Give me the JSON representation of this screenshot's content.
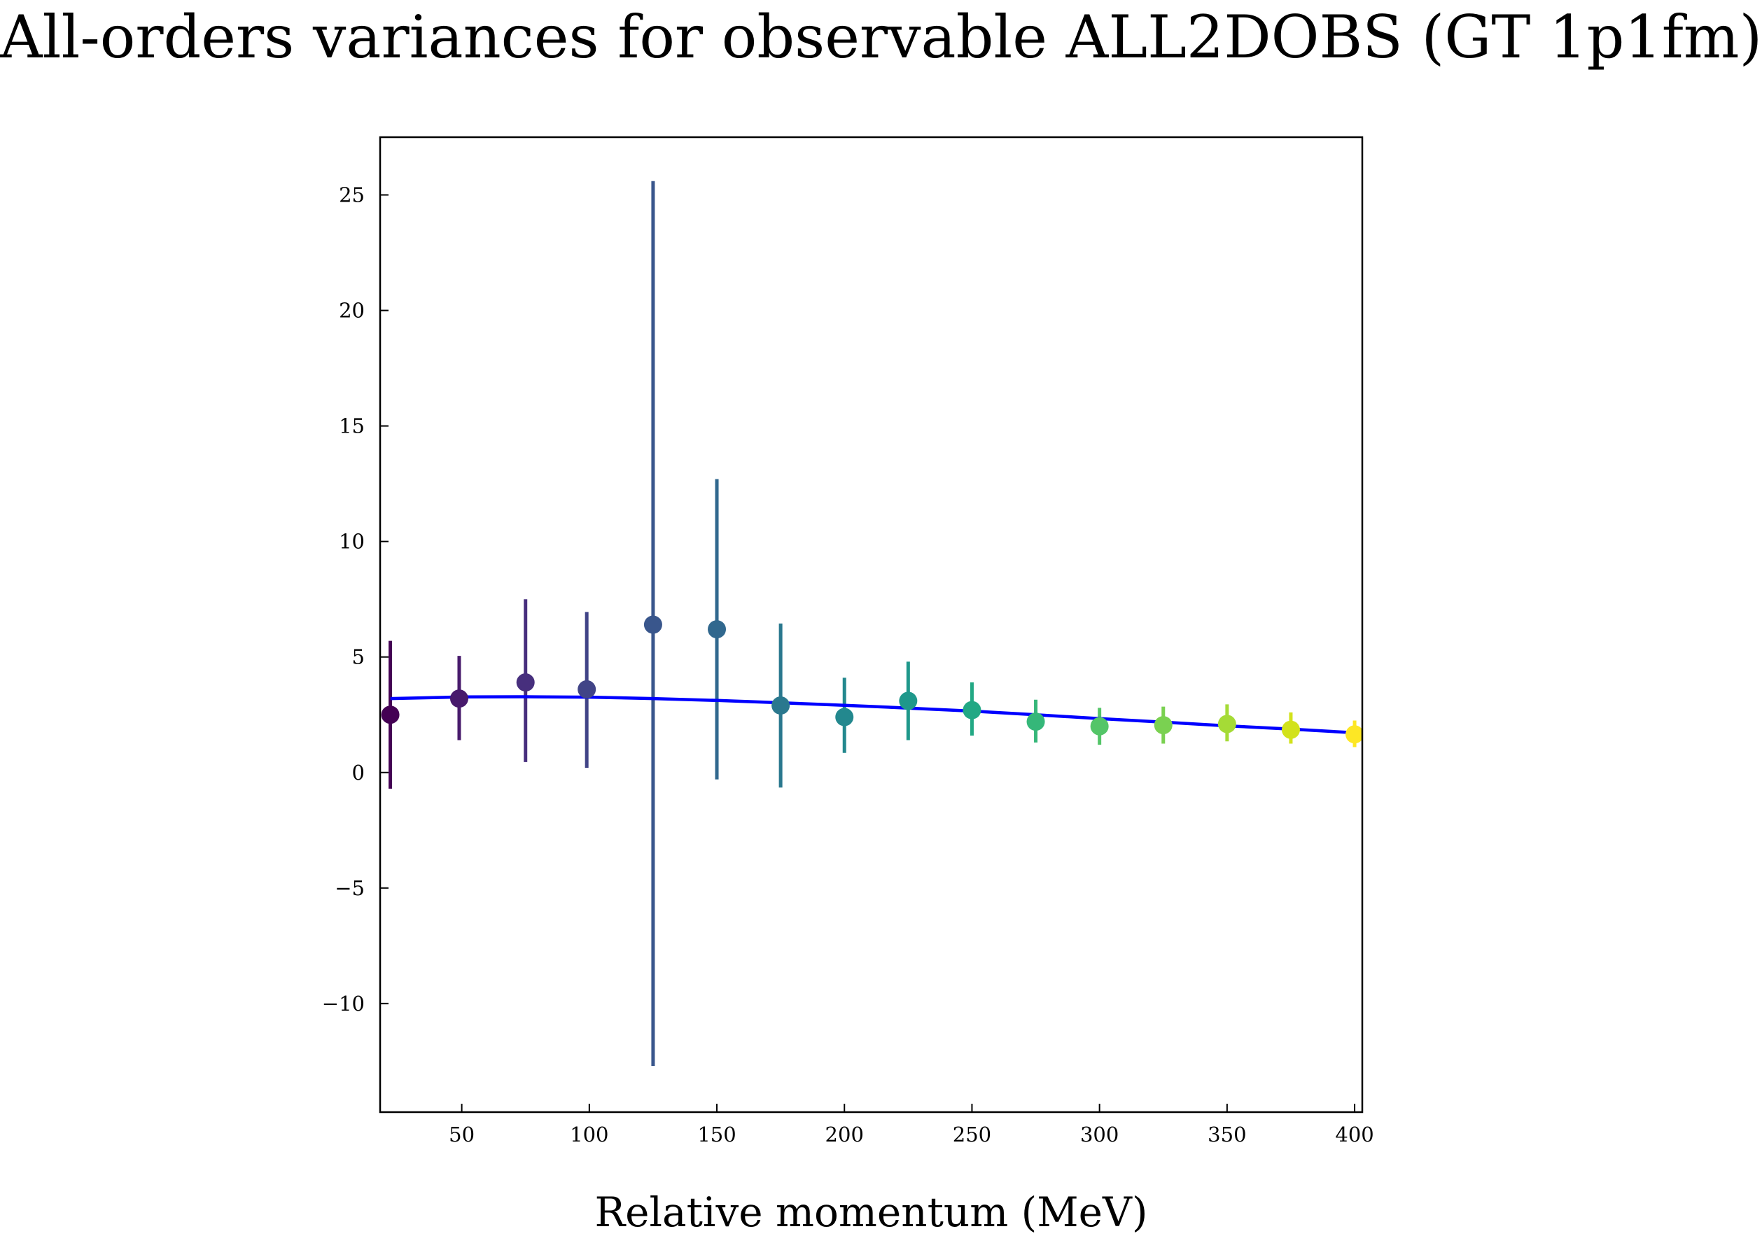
{
  "chart_data": {
    "type": "scatter",
    "title": "All-orders variances for observable ALL2DOBS (GT 1p1fm)",
    "xlabel": "Relative momentum (MeV)",
    "ylabel": "",
    "xlim": [
      18,
      403
    ],
    "ylim": [
      -14.7,
      27.5
    ],
    "xticks": [
      50,
      100,
      150,
      200,
      250,
      300,
      350,
      400
    ],
    "yticks": [
      -10,
      -5,
      0,
      5,
      10,
      15,
      20,
      25
    ],
    "ytick_labels": [
      "−10",
      "−5",
      "0",
      "5",
      "10",
      "15",
      "20",
      "25"
    ],
    "grid": false,
    "legend": "none",
    "series": [
      {
        "type": "errorbar",
        "x": [
          22,
          49,
          75,
          99,
          125,
          150,
          175,
          200,
          225,
          250,
          275,
          300,
          325,
          350,
          375,
          400
        ],
        "y": [
          2.5,
          3.2,
          3.9,
          3.6,
          6.4,
          6.2,
          2.9,
          2.4,
          3.1,
          2.7,
          2.2,
          2.0,
          2.05,
          2.1,
          1.85,
          1.65
        ],
        "yerr_low": [
          -0.7,
          1.4,
          0.45,
          0.2,
          -12.7,
          -0.3,
          -0.65,
          0.85,
          1.4,
          1.6,
          1.3,
          1.2,
          1.25,
          1.35,
          1.25,
          1.1
        ],
        "yerr_high": [
          5.7,
          5.05,
          7.5,
          6.95,
          25.6,
          12.7,
          6.45,
          4.1,
          4.8,
          3.9,
          3.15,
          2.8,
          2.85,
          2.95,
          2.6,
          2.25
        ],
        "colors": [
          "#440154",
          "#481a6c",
          "#472f7d",
          "#414487",
          "#39568c",
          "#31688e",
          "#2a788e",
          "#23888e",
          "#1f988b",
          "#22a884",
          "#35b779",
          "#54c568",
          "#7ad151",
          "#a5db36",
          "#d2e21b",
          "#fde725"
        ]
      },
      {
        "type": "line",
        "color": "#0000ff",
        "x": [
          22,
          50,
          75,
          100,
          125,
          150,
          175,
          200,
          225,
          250,
          275,
          300,
          325,
          350,
          375,
          400
        ],
        "y": [
          3.2,
          3.27,
          3.28,
          3.26,
          3.2,
          3.12,
          3.02,
          2.91,
          2.79,
          2.66,
          2.5,
          2.33,
          2.18,
          2.02,
          1.88,
          1.72
        ]
      }
    ]
  }
}
